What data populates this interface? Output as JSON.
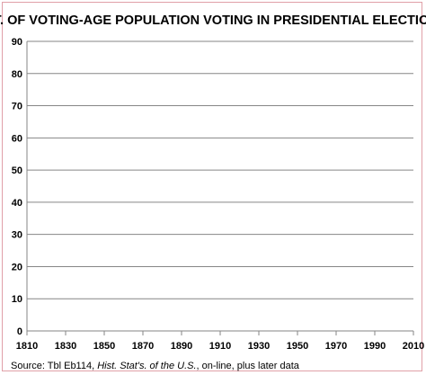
{
  "chart_data": {
    "type": "line",
    "title": "PCT. OF VOTING-AGE POPULATION VOTING IN PRESIDENTIAL ELECTIONS",
    "xlabel": "",
    "ylabel": "",
    "x_ticks": [
      "1810",
      "1830",
      "1850",
      "1870",
      "1890",
      "1910",
      "1930",
      "1950",
      "1970",
      "1990",
      "2010"
    ],
    "y_ticks": [
      "0",
      "10",
      "20",
      "30",
      "40",
      "50",
      "60",
      "70",
      "80",
      "90"
    ],
    "xlim": [
      1810,
      2010
    ],
    "ylim": [
      0,
      90
    ],
    "grid": true,
    "series": [],
    "source": {
      "prefix": "Source: Tbl Eb114, ",
      "italic": "Hist. Stat's. of the U.S.",
      "suffix": ", on-line, plus later data"
    }
  },
  "colors": {
    "frame_border": "#e0a0a8",
    "gridline": "#868686",
    "axis": "#868686"
  }
}
